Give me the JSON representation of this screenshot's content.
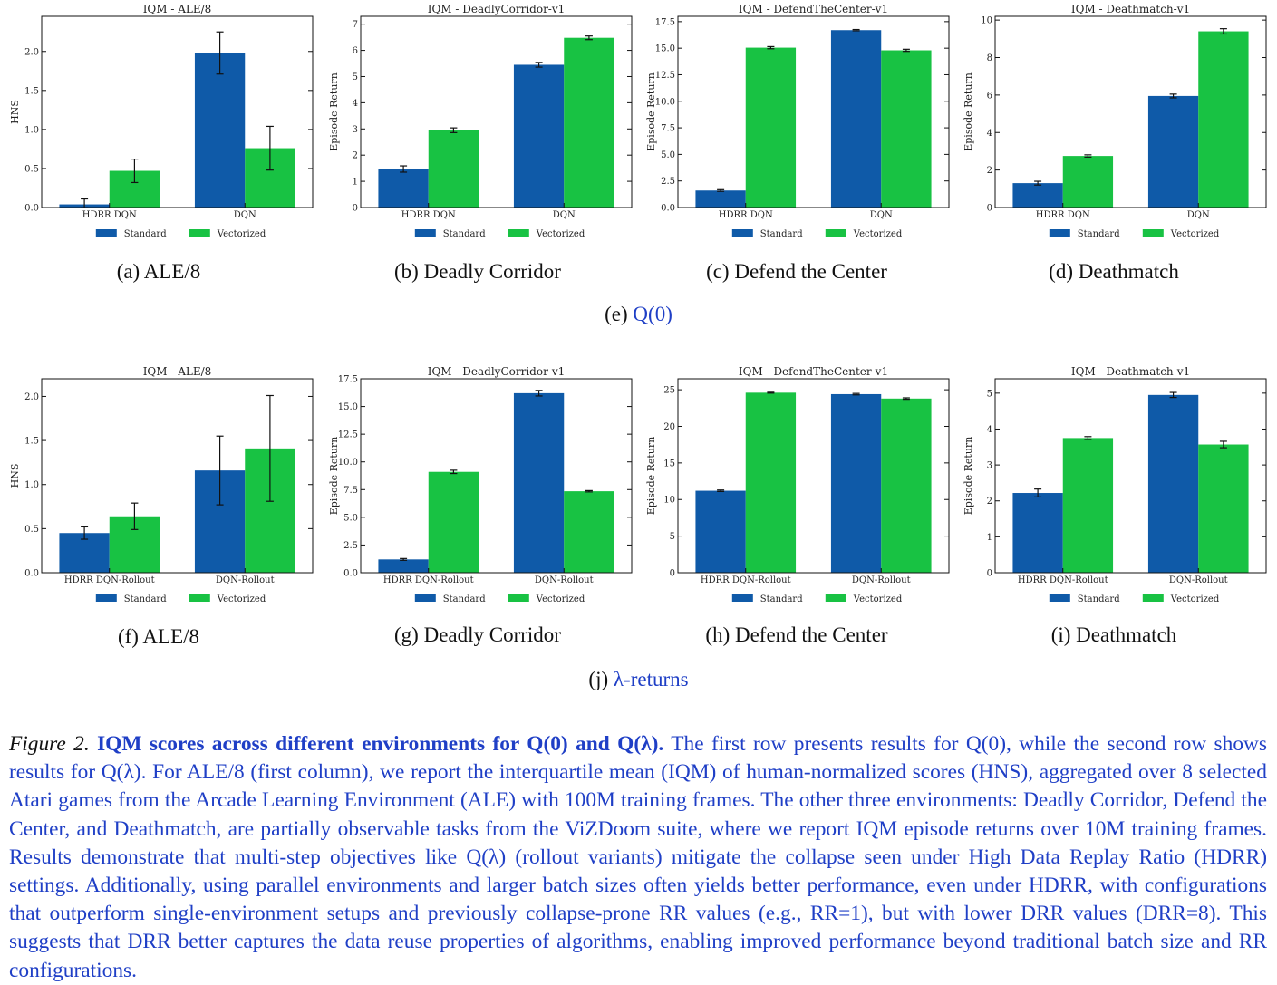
{
  "colors": {
    "standard": "#0f5aa8",
    "vectorized": "#18c243",
    "link": "#1f3fc6"
  },
  "legend_labels": [
    "Standard",
    "Vectorized"
  ],
  "row1": {
    "subcaptions": [
      "(a) ALE/8",
      "(b) Deadly Corridor",
      "(c) Defend the Center",
      "(d) Deathmatch"
    ],
    "group_caption_prefix": "(e) ",
    "group_caption_link": "Q(0)"
  },
  "row2": {
    "subcaptions": [
      "(f) ALE/8",
      "(g) Deadly Corridor",
      "(h) Defend the Center",
      "(i) Deathmatch"
    ],
    "group_caption_prefix": "(j) ",
    "group_caption_link": "λ-returns"
  },
  "chart_data": [
    {
      "type": "bar",
      "title": "IQM - ALE/8",
      "ylabel": "HNS",
      "ylim": [
        0,
        2.45
      ],
      "yticks": [
        0.0,
        0.5,
        1.0,
        1.5,
        2.0
      ],
      "ytick_labels": [
        "0.0",
        "0.5",
        "1.0",
        "1.5",
        "2.0"
      ],
      "categories": [
        "HDRR DQN",
        "DQN"
      ],
      "series": [
        {
          "name": "Standard",
          "values": [
            0.04,
            1.98
          ],
          "errors": [
            0.07,
            0.27
          ]
        },
        {
          "name": "Vectorized",
          "values": [
            0.47,
            0.76
          ],
          "errors": [
            0.15,
            0.28
          ]
        }
      ]
    },
    {
      "type": "bar",
      "title": "IQM - DeadlyCorridor-v1",
      "ylabel": "Episode Return",
      "ylim": [
        0,
        7.3
      ],
      "yticks": [
        0,
        1,
        2,
        3,
        4,
        5,
        6,
        7
      ],
      "ytick_labels": [
        "0",
        "1",
        "2",
        "3",
        "4",
        "5",
        "6",
        "7"
      ],
      "categories": [
        "HDRR DQN",
        "DQN"
      ],
      "series": [
        {
          "name": "Standard",
          "values": [
            1.47,
            5.45
          ],
          "errors": [
            0.12,
            0.09
          ]
        },
        {
          "name": "Vectorized",
          "values": [
            2.95,
            6.48
          ],
          "errors": [
            0.09,
            0.07
          ]
        }
      ]
    },
    {
      "type": "bar",
      "title": "IQM - DefendTheCenter-v1",
      "ylabel": "Episode Return",
      "ylim": [
        0,
        18.0
      ],
      "yticks": [
        0,
        2.5,
        5,
        7.5,
        10,
        12.5,
        15,
        17.5
      ],
      "ytick_labels": [
        "0.0",
        "2.5",
        "5.0",
        "7.5",
        "10.0",
        "12.5",
        "15.0",
        "17.5"
      ],
      "categories": [
        "HDRR DQN",
        "DQN"
      ],
      "series": [
        {
          "name": "Standard",
          "values": [
            1.6,
            16.7
          ],
          "errors": [
            0.08,
            0.06
          ]
        },
        {
          "name": "Vectorized",
          "values": [
            15.05,
            14.8
          ],
          "errors": [
            0.1,
            0.1
          ]
        }
      ]
    },
    {
      "type": "bar",
      "title": "IQM - Deathmatch-v1",
      "ylabel": "Episode Return",
      "ylim": [
        0,
        10.2
      ],
      "yticks": [
        0,
        2,
        4,
        6,
        8,
        10
      ],
      "ytick_labels": [
        "0",
        "2",
        "4",
        "6",
        "8",
        "10"
      ],
      "categories": [
        "HDRR DQN",
        "DQN"
      ],
      "series": [
        {
          "name": "Standard",
          "values": [
            1.3,
            5.95
          ],
          "errors": [
            0.1,
            0.1
          ]
        },
        {
          "name": "Vectorized",
          "values": [
            2.75,
            9.4
          ],
          "errors": [
            0.06,
            0.14
          ]
        }
      ]
    },
    {
      "type": "bar",
      "title": "IQM - ALE/8",
      "ylabel": "HNS",
      "ylim": [
        0,
        2.2
      ],
      "yticks": [
        0.0,
        0.5,
        1.0,
        1.5,
        2.0
      ],
      "ytick_labels": [
        "0.0",
        "0.5",
        "1.0",
        "1.5",
        "2.0"
      ],
      "categories": [
        "HDRR DQN-Rollout",
        "DQN-Rollout"
      ],
      "series": [
        {
          "name": "Standard",
          "values": [
            0.45,
            1.16
          ],
          "errors": [
            0.07,
            0.39
          ]
        },
        {
          "name": "Vectorized",
          "values": [
            0.64,
            1.41
          ],
          "errors": [
            0.15,
            0.6
          ]
        }
      ]
    },
    {
      "type": "bar",
      "title": "IQM - DeadlyCorridor-v1",
      "ylabel": "Episode Return",
      "ylim": [
        0,
        17.5
      ],
      "yticks": [
        0,
        2.5,
        5,
        7.5,
        10,
        12.5,
        15,
        17.5
      ],
      "ytick_labels": [
        "0.0",
        "2.5",
        "5.0",
        "7.5",
        "10.0",
        "12.5",
        "15.0",
        "17.5"
      ],
      "categories": [
        "HDRR DQN-Rollout",
        "DQN-Rollout"
      ],
      "series": [
        {
          "name": "Standard",
          "values": [
            1.2,
            16.2
          ],
          "errors": [
            0.08,
            0.25
          ]
        },
        {
          "name": "Vectorized",
          "values": [
            9.1,
            7.35
          ],
          "errors": [
            0.15,
            0.06
          ]
        }
      ]
    },
    {
      "type": "bar",
      "title": "IQM - DefendTheCenter-v1",
      "ylabel": "Episode Return",
      "ylim": [
        0,
        26.5
      ],
      "yticks": [
        0,
        5,
        10,
        15,
        20,
        25
      ],
      "ytick_labels": [
        "0",
        "5",
        "10",
        "15",
        "20",
        "25"
      ],
      "categories": [
        "HDRR DQN-Rollout",
        "DQN-Rollout"
      ],
      "series": [
        {
          "name": "Standard",
          "values": [
            11.2,
            24.4
          ],
          "errors": [
            0.1,
            0.1
          ]
        },
        {
          "name": "Vectorized",
          "values": [
            24.6,
            23.8
          ],
          "errors": [
            0.06,
            0.1
          ]
        }
      ]
    },
    {
      "type": "bar",
      "title": "IQM - Deathmatch-v1",
      "ylabel": "Episode Return",
      "ylim": [
        0,
        5.4
      ],
      "yticks": [
        0,
        1,
        2,
        3,
        4,
        5
      ],
      "ytick_labels": [
        "0",
        "1",
        "2",
        "3",
        "4",
        "5"
      ],
      "categories": [
        "HDRR DQN-Rollout",
        "DQN-Rollout"
      ],
      "series": [
        {
          "name": "Standard",
          "values": [
            2.22,
            4.95
          ],
          "errors": [
            0.11,
            0.07
          ]
        },
        {
          "name": "Vectorized",
          "values": [
            3.75,
            3.57
          ],
          "errors": [
            0.04,
            0.09
          ]
        }
      ]
    }
  ],
  "caption": {
    "fig_label": "Figure 2.",
    "bold": "IQM scores across different environments for Q(0) and Q(λ).",
    "body": "The first row presents results for Q(0), while the second row shows results for Q(λ). For ALE/8 (first column), we report the interquartile mean (IQM) of human-normalized scores (HNS), aggregated over 8 selected Atari games from the Arcade Learning Environment (ALE) with 100M training frames. The other three environments: Deadly Corridor, Defend the Center, and Deathmatch, are partially observable tasks from the ViZDoom suite, where we report IQM episode returns over 10M training frames. Results demonstrate that multi-step objectives like Q(λ) (rollout variants) mitigate the collapse seen under High Data Replay Ratio (HDRR) settings. Additionally, using parallel environments and larger batch sizes often yields better performance, even under HDRR, with configurations that outperform single-environment setups and previously collapse-prone RR values (e.g., RR=1), but with lower DRR values (DRR=8). This suggests that DRR better captures the data reuse properties of algorithms, enabling improved performance beyond traditional batch size and RR configurations."
  }
}
